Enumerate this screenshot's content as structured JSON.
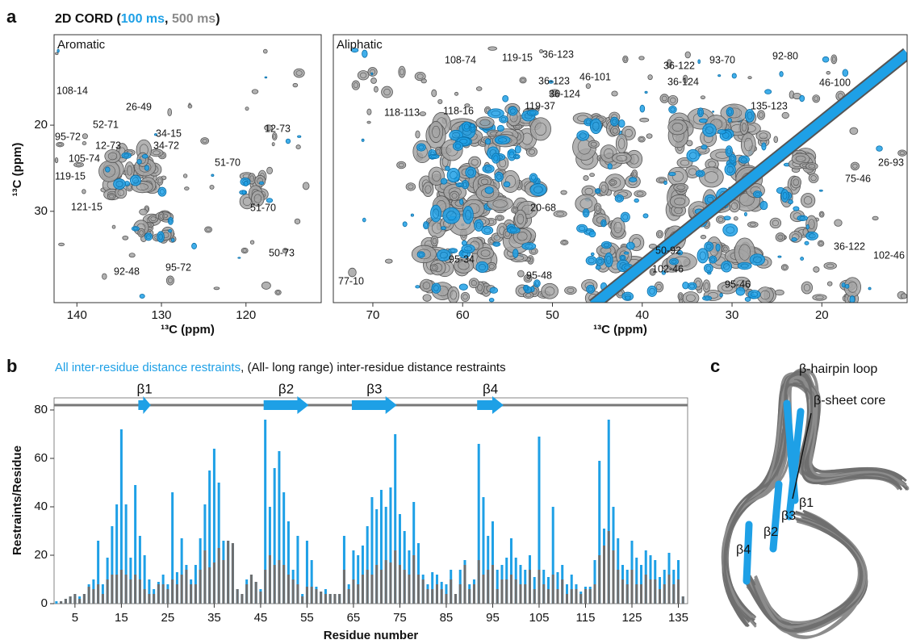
{
  "panel_labels": [
    "a",
    "b",
    "c"
  ],
  "spectra": {
    "title_prefix": "2D CORD (",
    "separator": ", ",
    "title_suffix": ")",
    "series": [
      {
        "name": "100 ms",
        "color": "#1ea0e6"
      },
      {
        "name": "500 ms",
        "color": "#8a8a8a"
      }
    ],
    "charts": [
      {
        "type": "contour",
        "title": "Aromatic",
        "xlabel": "¹³C (ppm)",
        "ylabel": "¹³C (ppm)",
        "xlim": [
          142.7,
          111.1
        ],
        "xticks": [
          140,
          130,
          120
        ],
        "ylim": [
          9.5,
          40.6
        ],
        "yticks": [
          20,
          30
        ],
        "peak_labels": [
          "108-14",
          "26-49",
          "52-71",
          "34-15",
          "95-72",
          "12-73",
          "34-72",
          "12-73",
          "105-74",
          "51-70",
          "119-15",
          "121-15",
          "51-70",
          "50-73",
          "92-48",
          "95-72"
        ]
      },
      {
        "type": "contour",
        "title": "Aliphatic",
        "xlabel": "¹³C (ppm)",
        "xlim": [
          74.4,
          10.5
        ],
        "xticks": [
          70,
          60,
          50,
          40,
          30,
          20
        ],
        "peak_labels": [
          "108-74",
          "119-15",
          "36-123",
          "36-122",
          "93-70",
          "92-80",
          "46-101",
          "36-123",
          "36-124",
          "36-124",
          "46-100",
          "119-37",
          "118-113",
          "118-16",
          "135-123",
          "26-93",
          "75-46",
          "20-68",
          "50-92",
          "36-122",
          "102-46",
          "95-34",
          "102-46",
          "95-48",
          "95-46",
          "77-10"
        ]
      }
    ]
  },
  "chart_data": {
    "type": "bar",
    "legend_separator": ", ",
    "xlabel": "Residue number",
    "ylabel": "Restraints/Residue",
    "x": [
      1,
      2,
      3,
      4,
      5,
      6,
      7,
      8,
      9,
      10,
      11,
      12,
      13,
      14,
      15,
      16,
      17,
      18,
      19,
      20,
      21,
      22,
      23,
      24,
      25,
      26,
      27,
      28,
      29,
      30,
      31,
      32,
      33,
      34,
      35,
      36,
      37,
      38,
      39,
      40,
      41,
      42,
      43,
      44,
      45,
      46,
      47,
      48,
      49,
      50,
      51,
      52,
      53,
      54,
      55,
      56,
      57,
      58,
      59,
      60,
      61,
      62,
      63,
      64,
      65,
      66,
      67,
      68,
      69,
      70,
      71,
      72,
      73,
      74,
      75,
      76,
      77,
      78,
      79,
      80,
      81,
      82,
      83,
      84,
      85,
      86,
      87,
      88,
      89,
      90,
      91,
      92,
      93,
      94,
      95,
      96,
      97,
      98,
      99,
      100,
      101,
      102,
      103,
      104,
      105,
      106,
      107,
      108,
      109,
      110,
      111,
      112,
      113,
      114,
      115,
      116,
      117,
      118,
      119,
      120,
      121,
      122,
      123,
      124,
      125,
      126,
      127,
      128,
      129,
      130,
      131,
      132,
      133,
      134,
      135,
      136
    ],
    "series": [
      {
        "name": "All inter-residue distance restraints",
        "color": "#1ea0e6",
        "values": [
          1,
          1,
          2,
          3,
          4,
          3,
          4,
          8,
          10,
          26,
          8,
          19,
          32,
          41,
          72,
          41,
          19,
          49,
          28,
          20,
          10,
          6,
          9,
          12,
          8,
          46,
          13,
          27,
          16,
          10,
          16,
          27,
          41,
          55,
          64,
          50,
          26,
          26,
          25,
          6,
          4,
          10,
          12,
          9,
          6,
          76,
          40,
          56,
          63,
          46,
          34,
          14,
          28,
          4,
          26,
          18,
          7,
          5,
          6,
          4,
          4,
          4,
          28,
          8,
          22,
          20,
          24,
          32,
          44,
          39,
          47,
          40,
          48,
          70,
          37,
          30,
          22,
          42,
          25,
          12,
          8,
          13,
          12,
          9,
          8,
          14,
          4,
          14,
          18,
          8,
          10,
          66,
          44,
          28,
          34,
          14,
          16,
          19,
          27,
          19,
          16,
          14,
          20,
          11,
          69,
          14,
          11,
          40,
          13,
          16,
          8,
          12,
          8,
          5,
          7,
          7,
          18,
          59,
          31,
          76,
          40,
          27,
          16,
          14,
          26,
          19,
          16,
          22,
          20,
          18,
          11,
          14,
          21,
          14,
          18,
          3
        ]
      },
      {
        "name": "(All- long range) inter-residue distance restraints",
        "color": "#6e6e6e",
        "values": [
          0,
          1,
          2,
          3,
          4,
          2,
          4,
          7,
          6,
          8,
          4,
          10,
          12,
          12,
          14,
          12,
          10,
          12,
          10,
          6,
          4,
          4,
          8,
          8,
          6,
          10,
          8,
          12,
          14,
          8,
          8,
          14,
          22,
          15,
          17,
          23,
          18,
          26,
          25,
          6,
          4,
          8,
          12,
          9,
          5,
          14,
          20,
          16,
          18,
          16,
          12,
          10,
          8,
          3,
          7,
          7,
          6,
          5,
          4,
          4,
          4,
          4,
          14,
          6,
          10,
          8,
          12,
          14,
          12,
          16,
          14,
          18,
          17,
          22,
          16,
          14,
          12,
          20,
          12,
          10,
          6,
          6,
          8,
          6,
          4,
          10,
          4,
          8,
          16,
          6,
          8,
          18,
          12,
          14,
          16,
          6,
          10,
          10,
          12,
          10,
          8,
          8,
          14,
          6,
          14,
          8,
          6,
          12,
          6,
          10,
          4,
          6,
          6,
          4,
          6,
          6,
          8,
          20,
          24,
          30,
          22,
          14,
          10,
          8,
          14,
          8,
          8,
          12,
          10,
          10,
          6,
          8,
          12,
          8,
          10,
          3
        ]
      }
    ],
    "xlim": [
      0.5,
      137
    ],
    "xticks": [
      5,
      15,
      25,
      35,
      45,
      55,
      65,
      75,
      85,
      95,
      105,
      115,
      125,
      135
    ],
    "ylim": [
      0,
      85
    ],
    "yticks": [
      0,
      20,
      40,
      60,
      80
    ],
    "strands": [
      {
        "label": "β1",
        "start": 19,
        "end": 21
      },
      {
        "label": "β2",
        "start": 46,
        "end": 55
      },
      {
        "label": "β3",
        "start": 65,
        "end": 74
      },
      {
        "label": "β4",
        "start": 92,
        "end": 97
      }
    ]
  },
  "structure": {
    "labels": [
      "β-hairpin loop",
      "β-sheet core",
      "β1",
      "β3",
      "β2",
      "β4"
    ]
  }
}
